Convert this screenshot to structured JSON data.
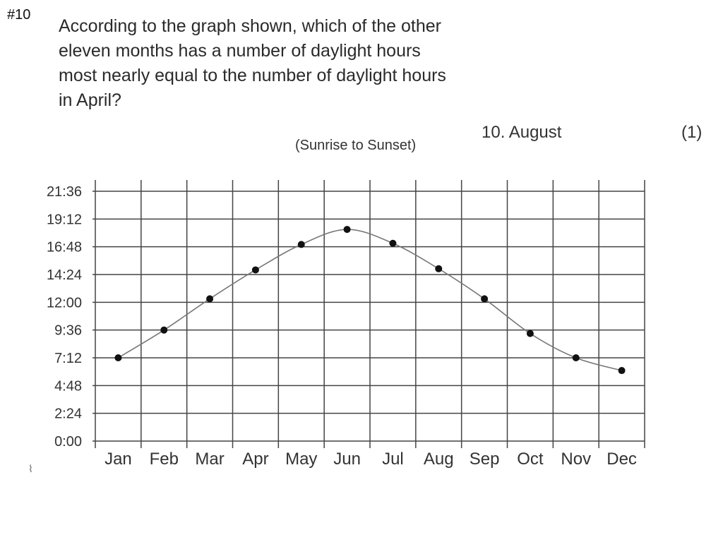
{
  "header": {
    "question_number": "#10",
    "question_lines": [
      "According to the graph shown, which of the other",
      "eleven months has a number of daylight hours",
      "most nearly equal to the number of daylight hours",
      "in April?"
    ],
    "answer": "10.  August",
    "points": "(1)"
  },
  "chart_data": {
    "type": "line",
    "title": "",
    "subtitle": "(Sunrise to Sunset)",
    "xlabel": "",
    "ylabel": "",
    "categories": [
      "Jan",
      "Feb",
      "Mar",
      "Apr",
      "May",
      "Jun",
      "Jul",
      "Aug",
      "Sep",
      "Oct",
      "Nov",
      "Dec"
    ],
    "y_tick_labels": [
      "0:00",
      "2:24",
      "4:48",
      "7:12",
      "9:36",
      "12:00",
      "14:24",
      "16:48",
      "19:12",
      "21:36"
    ],
    "y_ticks_hours": [
      0,
      2.4,
      4.8,
      7.2,
      9.6,
      12,
      14.4,
      16.8,
      19.2,
      21.6
    ],
    "ylim_hours": [
      0,
      21.6
    ],
    "series": [
      {
        "values_hours": [
          7.2,
          9.6,
          12.3,
          14.8,
          17.0,
          18.3,
          17.1,
          14.9,
          12.3,
          9.3,
          7.2,
          6.1
        ]
      }
    ],
    "grid": true,
    "legend": "none",
    "colors": {
      "line": "#777777",
      "marker": "#111111",
      "grid": "#444444"
    }
  }
}
